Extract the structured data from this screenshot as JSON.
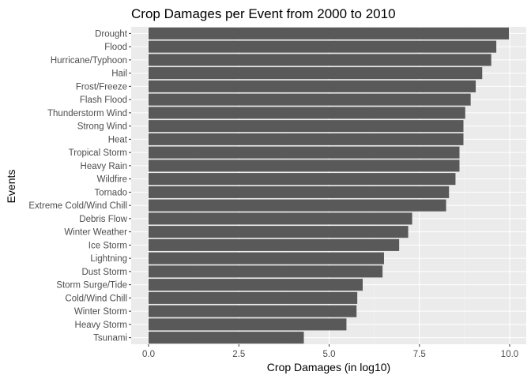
{
  "chart_data": {
    "type": "bar",
    "orientation": "horizontal",
    "title": "Crop Damages per Event from 2000 to 2010",
    "xlabel": "Crop Damages (in log10)",
    "ylabel": "Events",
    "xlim": [
      0,
      10
    ],
    "xticks": [
      "0.0",
      "2.5",
      "5.0",
      "7.5",
      "10.0"
    ],
    "grid": true,
    "categories": [
      "Drought",
      "Flood",
      "Hurricane/Typhoon",
      "Hail",
      "Frost/Freeze",
      "Flash Flood",
      "Thunderstorm Wind",
      "Strong Wind",
      "Heat",
      "Tropical Storm",
      "Heavy Rain",
      "Wildfire",
      "Tornado",
      "Extreme Cold/Wind Chill",
      "Debris Flow",
      "Winter Weather",
      "Ice Storm",
      "Lightning",
      "Dust Storm",
      "Storm Surge/Tide",
      "Cold/Wind Chill",
      "Winter Storm",
      "Heavy Storm",
      "Tsunami"
    ],
    "values": [
      9.98,
      9.63,
      9.49,
      9.24,
      9.06,
      8.92,
      8.77,
      8.72,
      8.72,
      8.61,
      8.61,
      8.5,
      8.32,
      8.24,
      7.3,
      7.19,
      6.94,
      6.52,
      6.48,
      5.93,
      5.78,
      5.76,
      5.48,
      4.3
    ],
    "colors": {
      "bar": "#595959",
      "panel": "#ebebeb",
      "grid_major": "#ffffff",
      "grid_minor": "#f5f5f5"
    }
  }
}
